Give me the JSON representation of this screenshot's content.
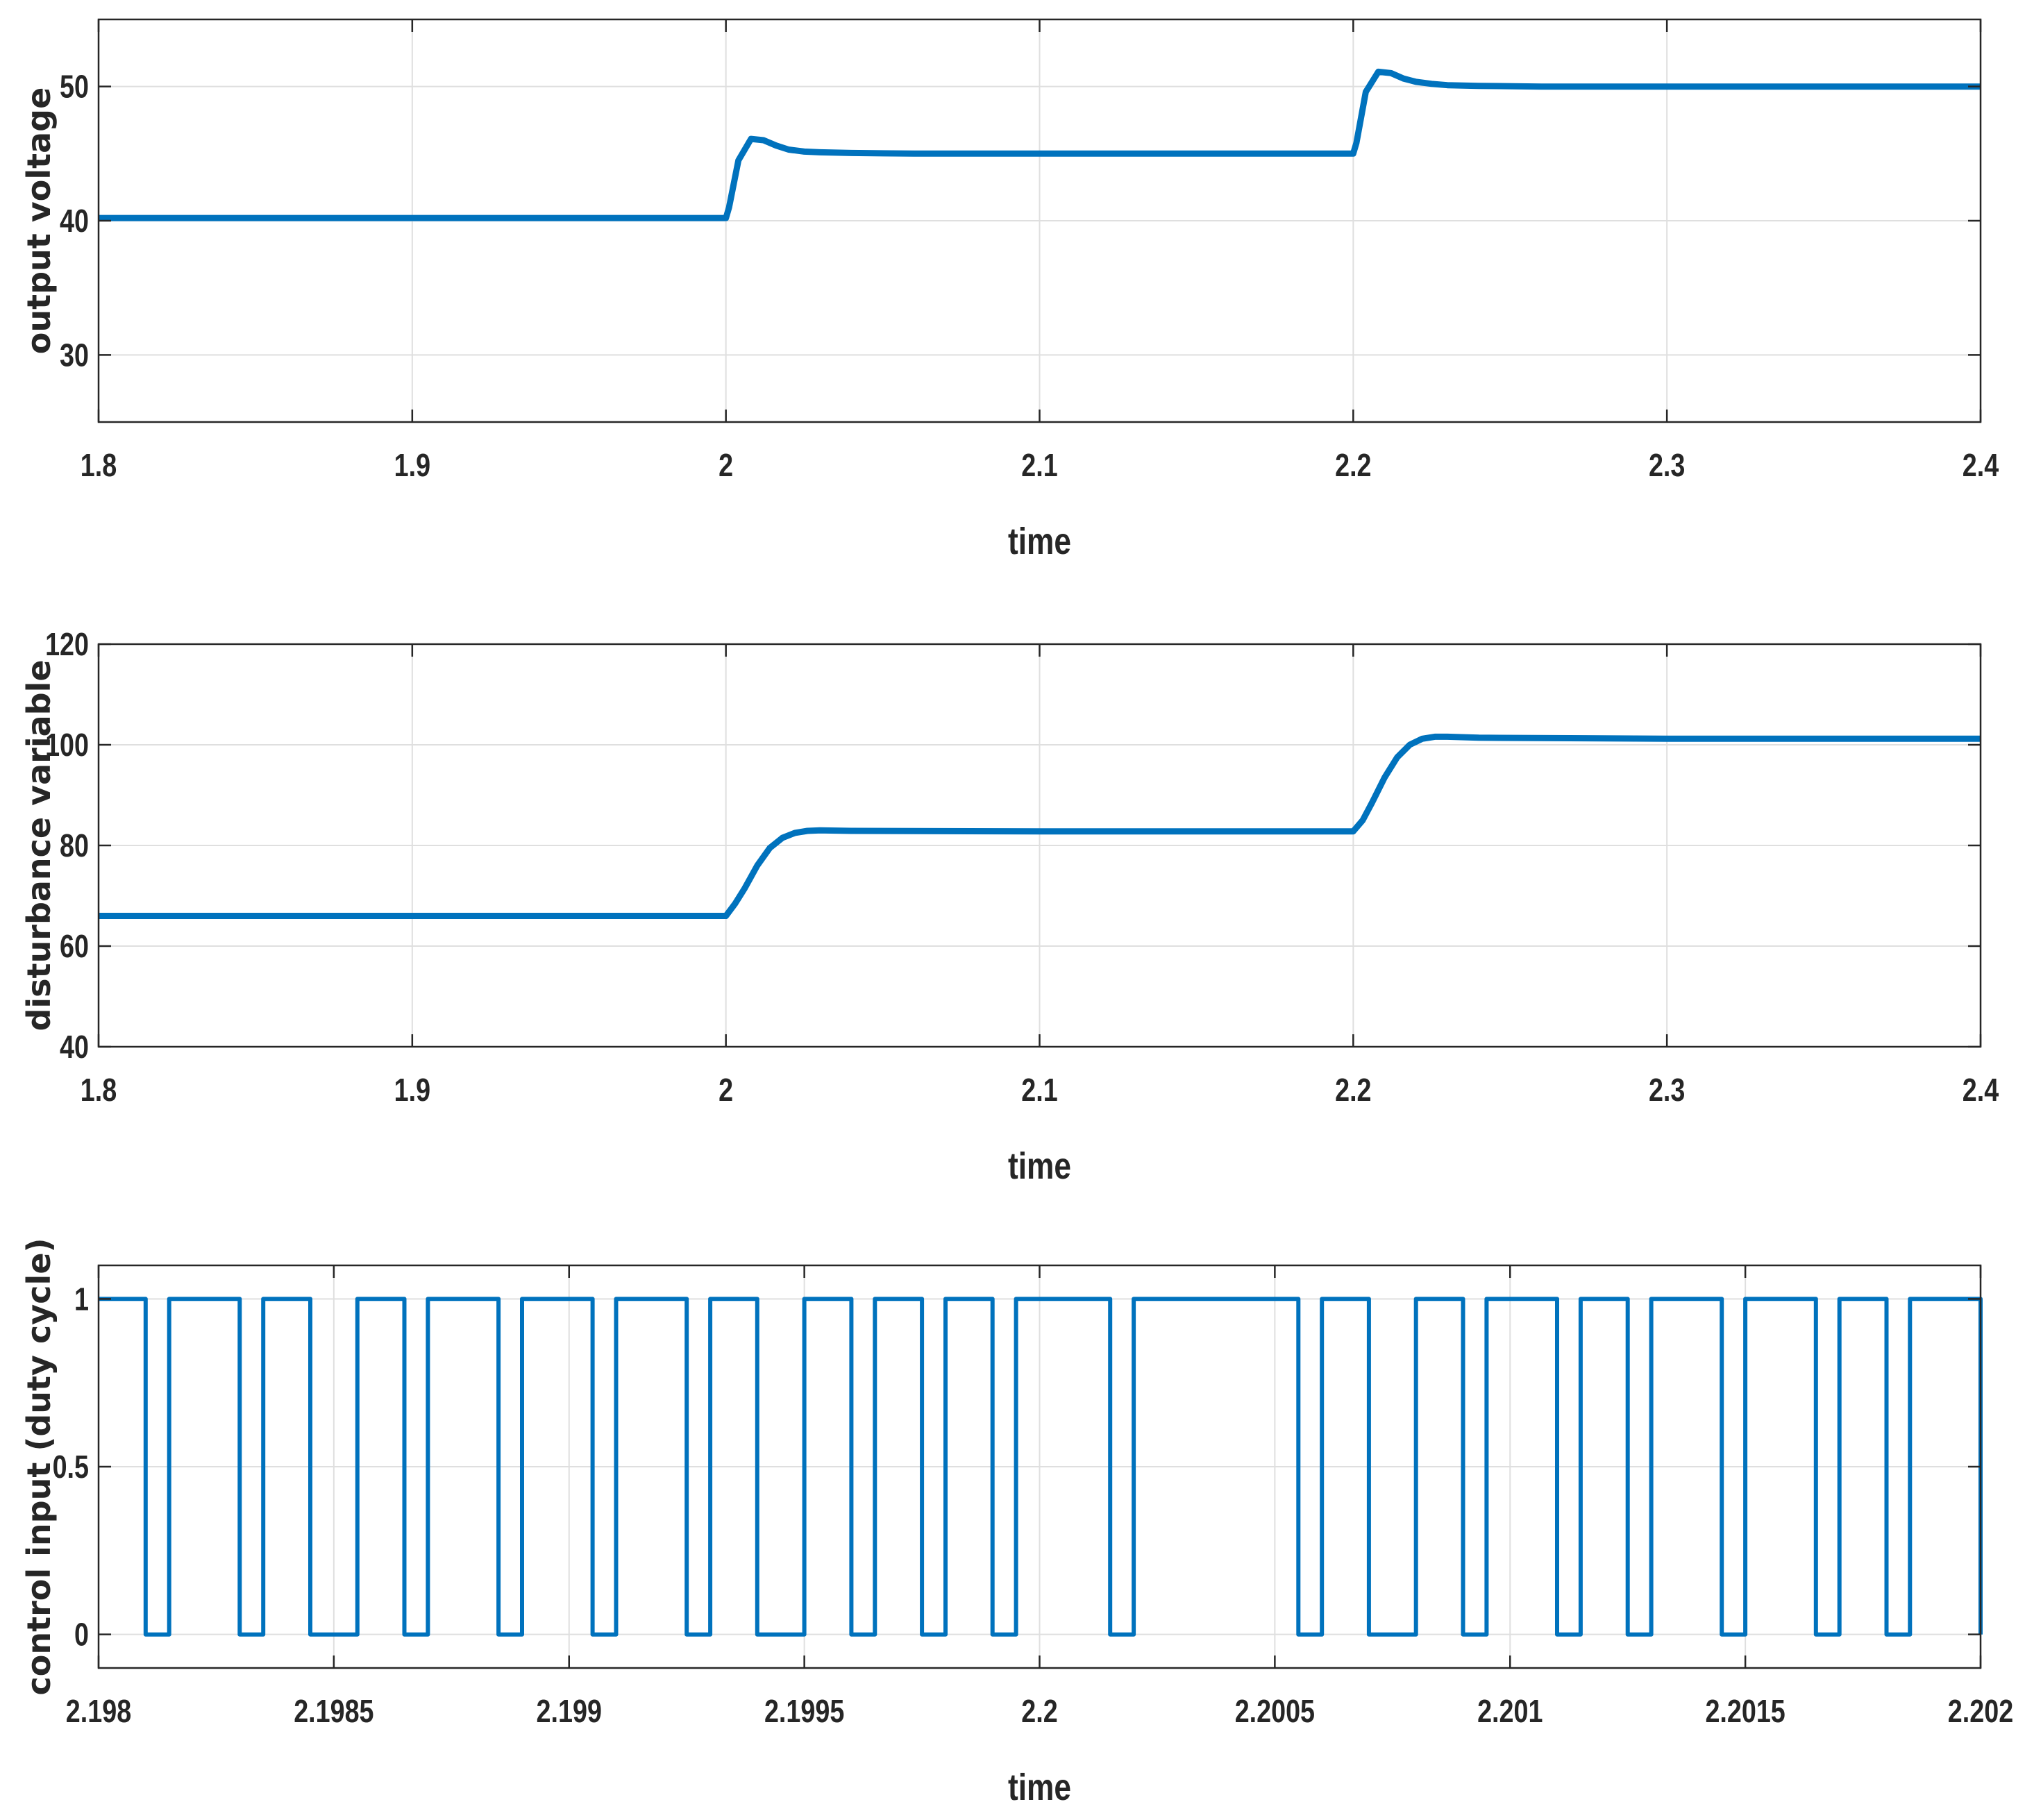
{
  "chart_data": [
    {
      "type": "line",
      "title": "",
      "xlabel": "time",
      "ylabel": "output voltage",
      "xlim": [
        1.8,
        2.4
      ],
      "ylim": [
        25,
        55
      ],
      "xticks": [
        1.8,
        1.9,
        2.0,
        2.1,
        2.2,
        2.3,
        2.4
      ],
      "xtick_labels": [
        "1.8",
        "1.9",
        "2",
        "2.1",
        "2.2",
        "2.3",
        "2.4"
      ],
      "yticks": [
        30,
        40,
        50
      ],
      "ytick_labels": [
        "30",
        "40",
        "50"
      ],
      "grid": true,
      "color": "#0072BD",
      "series": [
        {
          "x": [
            1.8,
            2.0,
            2.001,
            2.004,
            2.008,
            2.012,
            2.016,
            2.02,
            2.025,
            2.03,
            2.04,
            2.06,
            2.1,
            2.2,
            2.201,
            2.204,
            2.208,
            2.212,
            2.216,
            2.22,
            2.225,
            2.23,
            2.24,
            2.26,
            2.3,
            2.4
          ],
          "y": [
            40.2,
            40.2,
            41.0,
            44.5,
            46.1,
            46.0,
            45.6,
            45.3,
            45.15,
            45.1,
            45.05,
            45.0,
            45.0,
            45.0,
            45.8,
            49.6,
            51.1,
            51.0,
            50.6,
            50.35,
            50.2,
            50.1,
            50.05,
            50.0,
            50.0,
            50.0
          ]
        }
      ]
    },
    {
      "type": "line",
      "title": "",
      "xlabel": "time",
      "ylabel": "disturbance variable",
      "xlim": [
        1.8,
        2.4
      ],
      "ylim": [
        40,
        120
      ],
      "xticks": [
        1.8,
        1.9,
        2.0,
        2.1,
        2.2,
        2.3,
        2.4
      ],
      "xtick_labels": [
        "1.8",
        "1.9",
        "2",
        "2.1",
        "2.2",
        "2.3",
        "2.4"
      ],
      "yticks": [
        40,
        60,
        80,
        100,
        120
      ],
      "ytick_labels": [
        "40",
        "60",
        "80",
        "100",
        "120"
      ],
      "grid": true,
      "color": "#0072BD",
      "series": [
        {
          "x": [
            1.8,
            2.0,
            2.003,
            2.006,
            2.01,
            2.014,
            2.018,
            2.022,
            2.026,
            2.03,
            2.04,
            2.1,
            2.2,
            2.203,
            2.206,
            2.21,
            2.214,
            2.218,
            2.222,
            2.226,
            2.23,
            2.24,
            2.3,
            2.4
          ],
          "y": [
            66.0,
            66.0,
            68.5,
            71.5,
            76.0,
            79.5,
            81.5,
            82.5,
            82.9,
            83.0,
            82.9,
            82.8,
            82.8,
            85.0,
            88.5,
            93.5,
            97.5,
            100.0,
            101.2,
            101.6,
            101.6,
            101.4,
            101.2,
            101.2
          ]
        }
      ]
    },
    {
      "type": "line",
      "title": "",
      "xlabel": "time",
      "ylabel": "control input (duty cycle)",
      "xlim": [
        2.198,
        2.202
      ],
      "ylim": [
        -0.1,
        1.1
      ],
      "xticks": [
        2.198,
        2.1985,
        2.199,
        2.1995,
        2.2,
        2.2005,
        2.201,
        2.2015,
        2.202
      ],
      "xtick_labels": [
        "2.198",
        "2.1985",
        "2.199",
        "2.1995",
        "2.2",
        "2.2005",
        "2.201",
        "2.2015",
        "2.202"
      ],
      "yticks": [
        0,
        0.5,
        1
      ],
      "ytick_labels": [
        "0",
        "0.5",
        "1"
      ],
      "grid": true,
      "color": "#0072BD",
      "step": true,
      "low_intervals": [
        [
          2.1981,
          2.19815
        ],
        [
          2.1983,
          2.19835
        ],
        [
          2.19845,
          2.19855
        ],
        [
          2.19865,
          2.1987
        ],
        [
          2.19885,
          2.1989
        ],
        [
          2.19905,
          2.1991
        ],
        [
          2.19925,
          2.1993
        ],
        [
          2.1994,
          2.1995
        ],
        [
          2.1996,
          2.19965
        ],
        [
          2.19975,
          2.1998
        ],
        [
          2.1999,
          2.19995
        ],
        [
          2.20015,
          2.2002
        ],
        [
          2.20055,
          2.2006
        ],
        [
          2.2007,
          2.2008
        ],
        [
          2.2009,
          2.20095
        ],
        [
          2.2011,
          2.20115
        ],
        [
          2.20125,
          2.2013
        ],
        [
          2.20145,
          2.2015
        ],
        [
          2.20165,
          2.2017
        ],
        [
          2.2018,
          2.20185
        ]
      ]
    }
  ]
}
